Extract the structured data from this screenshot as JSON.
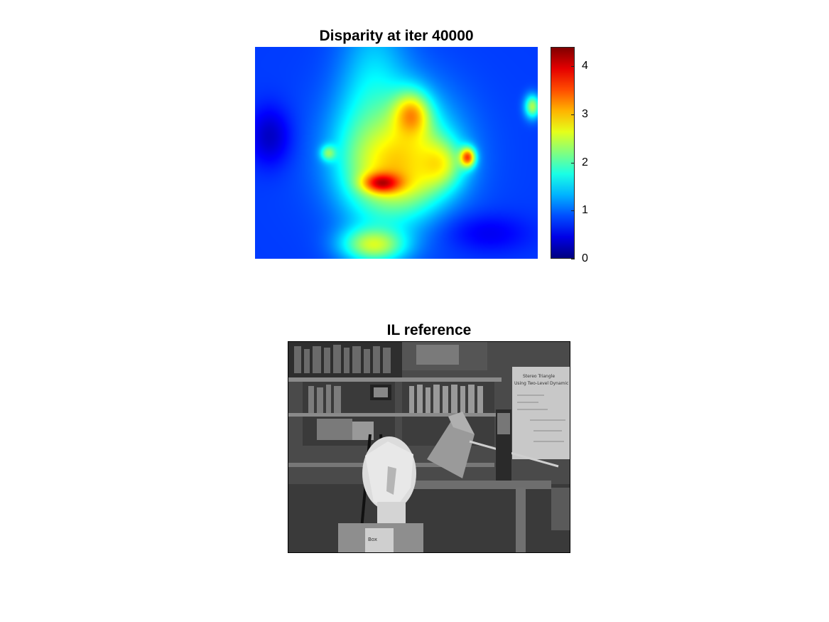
{
  "chart_data": [
    {
      "type": "heatmap",
      "title": "Disparity at iter 40000",
      "colormap": "jet",
      "colorbar": {
        "min": 0,
        "max": 4.4,
        "ticks": [
          0,
          1,
          2,
          3,
          4
        ]
      },
      "axes_visible": false,
      "blobs": [
        {
          "cx": 0.5,
          "cy": 0.5,
          "rx": 0.5,
          "ry": 0.5,
          "value": 0.85
        },
        {
          "cx": 0.42,
          "cy": 0.32,
          "rx": 0.13,
          "ry": 0.55,
          "value": 1.6
        },
        {
          "cx": 0.5,
          "cy": 0.5,
          "rx": 0.22,
          "ry": 0.32,
          "value": 2.1
        },
        {
          "cx": 0.5,
          "cy": 0.56,
          "rx": 0.16,
          "ry": 0.22,
          "value": 3.0
        },
        {
          "cx": 0.55,
          "cy": 0.33,
          "rx": 0.07,
          "ry": 0.12,
          "value": 3.3
        },
        {
          "cx": 0.63,
          "cy": 0.55,
          "rx": 0.1,
          "ry": 0.12,
          "value": 2.9
        },
        {
          "cx": 0.75,
          "cy": 0.52,
          "rx": 0.03,
          "ry": 0.05,
          "value": 3.6
        },
        {
          "cx": 0.45,
          "cy": 0.64,
          "rx": 0.07,
          "ry": 0.05,
          "value": 4.2
        },
        {
          "cx": 0.42,
          "cy": 0.93,
          "rx": 0.12,
          "ry": 0.09,
          "value": 2.6
        },
        {
          "cx": 0.26,
          "cy": 0.5,
          "rx": 0.03,
          "ry": 0.04,
          "value": 2.3
        },
        {
          "cx": 0.98,
          "cy": 0.28,
          "rx": 0.03,
          "ry": 0.06,
          "value": 2.4
        },
        {
          "cx": 0.05,
          "cy": 0.42,
          "rx": 0.08,
          "ry": 0.15,
          "value": 0.3
        },
        {
          "cx": 0.83,
          "cy": 0.88,
          "rx": 0.16,
          "ry": 0.1,
          "value": 0.5
        }
      ]
    },
    {
      "type": "image",
      "title": "IL reference",
      "colormap": "gray",
      "axes_visible": false
    }
  ],
  "photo_text": {
    "poster_line1": "Stereo Triangle",
    "poster_line2": "Using Two-Level Dynamic",
    "box_text": "Box"
  }
}
